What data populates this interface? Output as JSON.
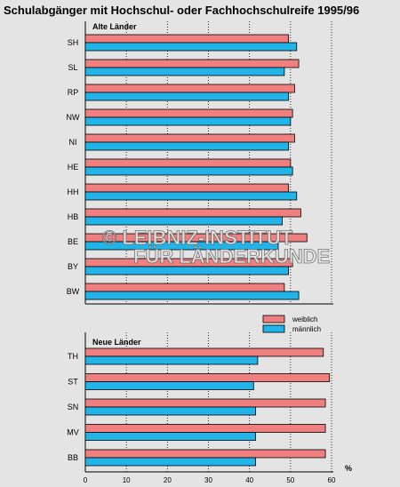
{
  "chart_data": {
    "type": "bar",
    "orientation": "horizontal",
    "title": "Schulabgänger mit Hochschul- oder Fachhochschulreife 1995/96",
    "unit": "%",
    "xlim": [
      0,
      60
    ],
    "x_ticks": [
      0,
      10,
      20,
      30,
      40,
      50,
      60
    ],
    "grid": true,
    "legend_position": "right",
    "series": [
      {
        "name": "weiblich",
        "color": "#f08080"
      },
      {
        "name": "männlich",
        "color": "#20b4e8"
      }
    ],
    "groups": [
      {
        "label": "Alte Länder",
        "categories": [
          "SH",
          "SL",
          "RP",
          "NW",
          "NI",
          "HE",
          "HH",
          "HB",
          "BE",
          "BY",
          "BW"
        ],
        "weiblich": [
          49.5,
          52.0,
          51.0,
          50.5,
          51.0,
          50.0,
          49.5,
          52.5,
          54.0,
          50.5,
          48.5
        ],
        "maennlich": [
          51.5,
          48.5,
          49.5,
          50.0,
          49.5,
          50.5,
          51.5,
          48.0,
          47.0,
          49.5,
          52.0
        ]
      },
      {
        "label": "Neue Länder",
        "categories": [
          "TH",
          "ST",
          "SN",
          "MV",
          "BB"
        ],
        "weiblich": [
          58.0,
          59.5,
          58.5,
          58.5,
          58.5
        ],
        "maennlich": [
          42.0,
          41.0,
          41.5,
          41.5,
          41.5
        ]
      }
    ]
  },
  "watermark": {
    "line1": "© LEIBNIZ-INSTITUT",
    "line2": "FÜR LÄNDERKUNDE"
  }
}
